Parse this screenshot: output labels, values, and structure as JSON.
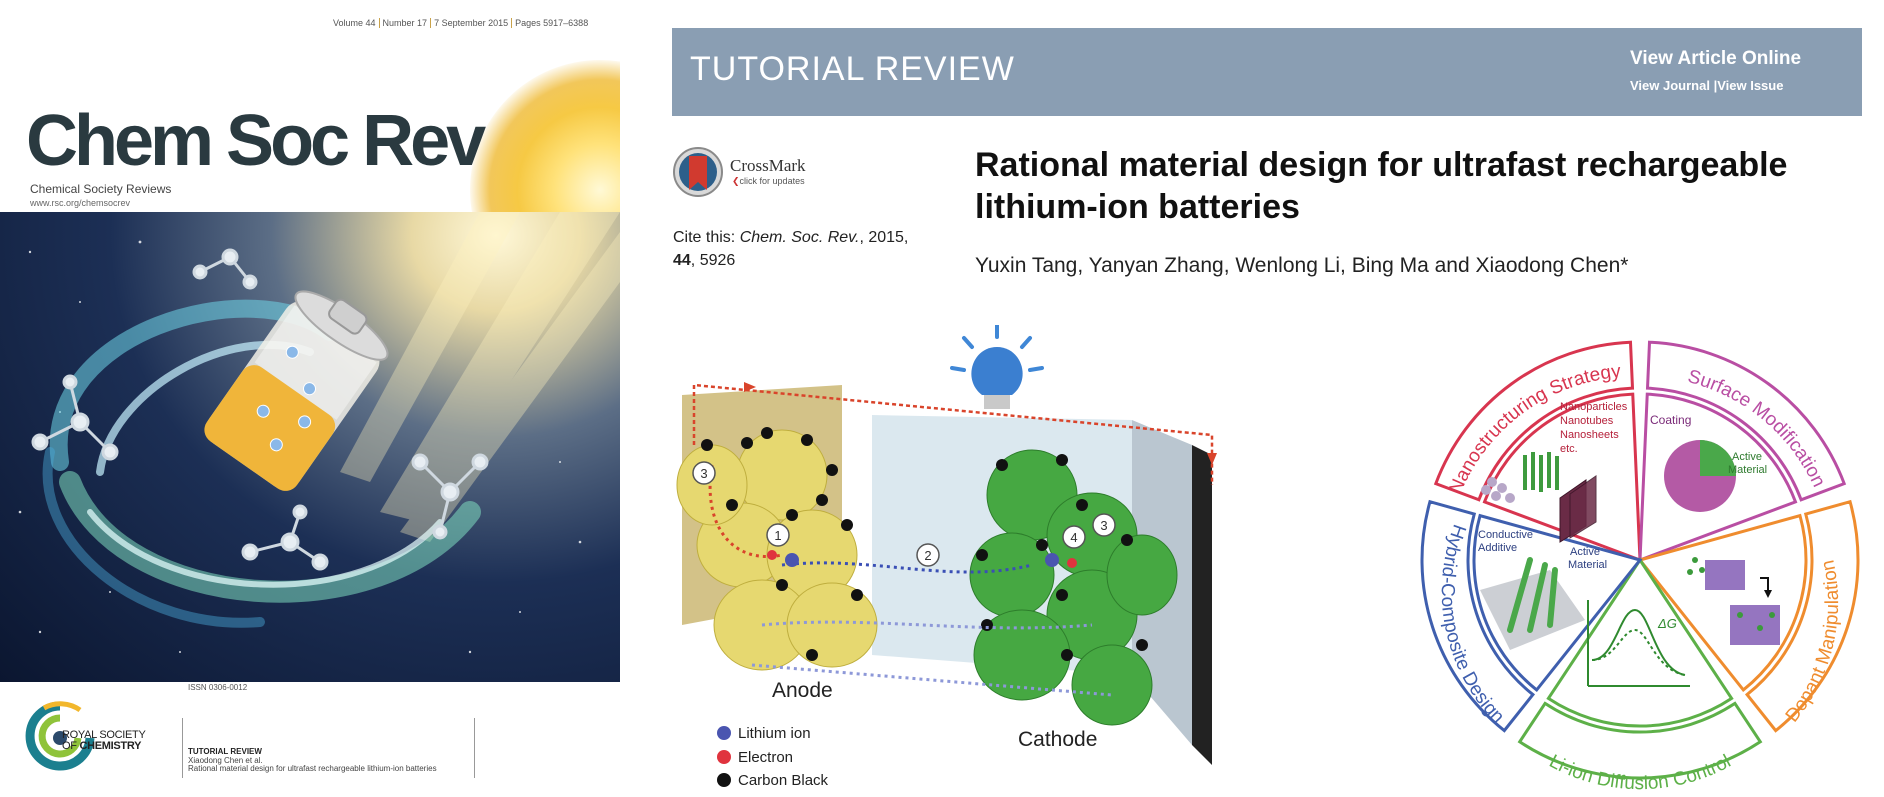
{
  "cover": {
    "issue_parts": [
      "Volume 44",
      "Number 17",
      "7 September 2015",
      "Pages 5917–6388"
    ],
    "title": "Chem Soc Rev",
    "subtitle": "Chemical Society Reviews",
    "url": "www.rsc.org/chemsocrev",
    "issn": "ISSN 0306-0012",
    "publisher_line1": "ROYAL SOCIETY",
    "publisher_line2_prefix": "OF ",
    "publisher_line2_bold": "CHEMISTRY",
    "caption_type": "TUTORIAL REVIEW",
    "caption_author": "Xiaodong Chen et al.",
    "caption_title": "Rational material design for ultrafast rechargeable lithium-ion batteries"
  },
  "header": {
    "article_type": "TUTORIAL REVIEW",
    "view_online": "View Article Online",
    "view_journal": "View Journal",
    "separator": " |",
    "view_issue": "View Issue"
  },
  "crossmark": {
    "label": "CrossMark",
    "sub": "click for updates"
  },
  "citation": {
    "prefix": "Cite this: ",
    "journal": "Chem. Soc. Rev.",
    "year": ", 2015,",
    "volume": "44",
    "page": ", 5926"
  },
  "article": {
    "title": "Rational material design for ultrafast rechargeable lithium-ion batteries",
    "authors": "Yuxin Tang, Yanyan Zhang, Wenlong Li, Bing Ma and Xiaodong Chen*"
  },
  "battery_figure": {
    "anode": "Anode",
    "cathode": "Cathode",
    "steps": [
      "1",
      "2",
      "3",
      "4",
      "3"
    ],
    "legend": [
      "Lithium ion",
      "Electron",
      "Carbon Black"
    ],
    "legend_colors": [
      "#4a55b0",
      "#e0333e",
      "#111111"
    ]
  },
  "strategy_wheel": {
    "segments": [
      {
        "label": "Nanostructuring Strategy",
        "color": "#d8354f"
      },
      {
        "label": "Surface Modification",
        "color": "#b94ea3"
      },
      {
        "label": "Dopant Manipulation",
        "color": "#ef8c2e"
      },
      {
        "label": "Li-ion Diffusion Control",
        "color": "#5db048"
      },
      {
        "label": "Hybrid-Composite Design",
        "color": "#3f5fae"
      }
    ],
    "nano_items": [
      "Nanoparticles",
      "Nanotubes",
      "Nanosheets",
      "etc."
    ],
    "coating": "Coating",
    "active_material_1": "Active",
    "active_material_2": "Material",
    "conductive_1": "Conductive",
    "conductive_2": "Additive",
    "delta_g": "ΔG"
  }
}
